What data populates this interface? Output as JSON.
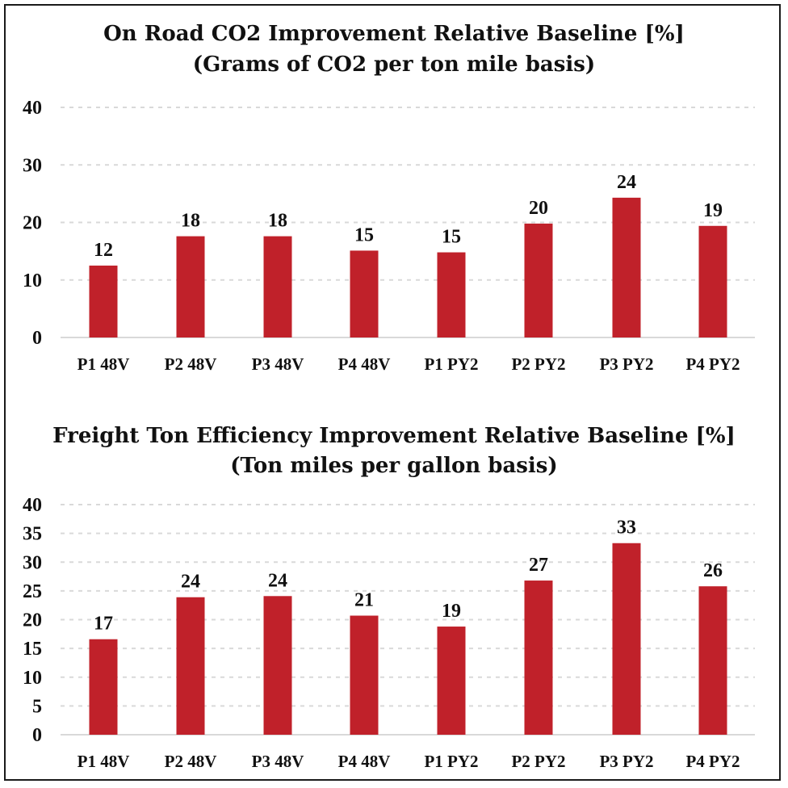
{
  "chart_data": [
    {
      "type": "bar",
      "title": "On Road CO2 Improvement Relative Baseline [%]",
      "subtitle": "(Grams of CO2 per ton mile basis)",
      "categories": [
        "P1 48V",
        "P2 48V",
        "P3 48V",
        "P4 48V",
        "P1 PY2",
        "P2 PY2",
        "P3 PY2",
        "P4 PY2"
      ],
      "values": [
        12.5,
        17.6,
        17.6,
        15.1,
        14.8,
        19.8,
        24.3,
        19.4
      ],
      "data_labels": [
        "12",
        "18",
        "18",
        "15",
        "15",
        "20",
        "24",
        "19"
      ],
      "yticks": [
        "0",
        "10",
        "20",
        "30",
        "40"
      ],
      "ylim": [
        0,
        40
      ],
      "grid": true,
      "bar_color": "#c0212a"
    },
    {
      "type": "bar",
      "title": "Freight Ton Efficiency Improvement Relative Baseline [%]",
      "subtitle": "(Ton miles per gallon basis)",
      "categories": [
        "P1 48V",
        "P2 48V",
        "P3 48V",
        "P4 48V",
        "P1 PY2",
        "P2 PY2",
        "P3 PY2",
        "P4 PY2"
      ],
      "values": [
        16.6,
        23.9,
        24.1,
        20.7,
        18.8,
        26.8,
        33.3,
        25.8
      ],
      "data_labels": [
        "17",
        "24",
        "24",
        "21",
        "19",
        "27",
        "33",
        "26"
      ],
      "yticks": [
        "0",
        "5",
        "10",
        "15",
        "20",
        "25",
        "30",
        "35",
        "40"
      ],
      "ylim": [
        0,
        40
      ],
      "grid": true,
      "bar_color": "#c0212a"
    }
  ]
}
